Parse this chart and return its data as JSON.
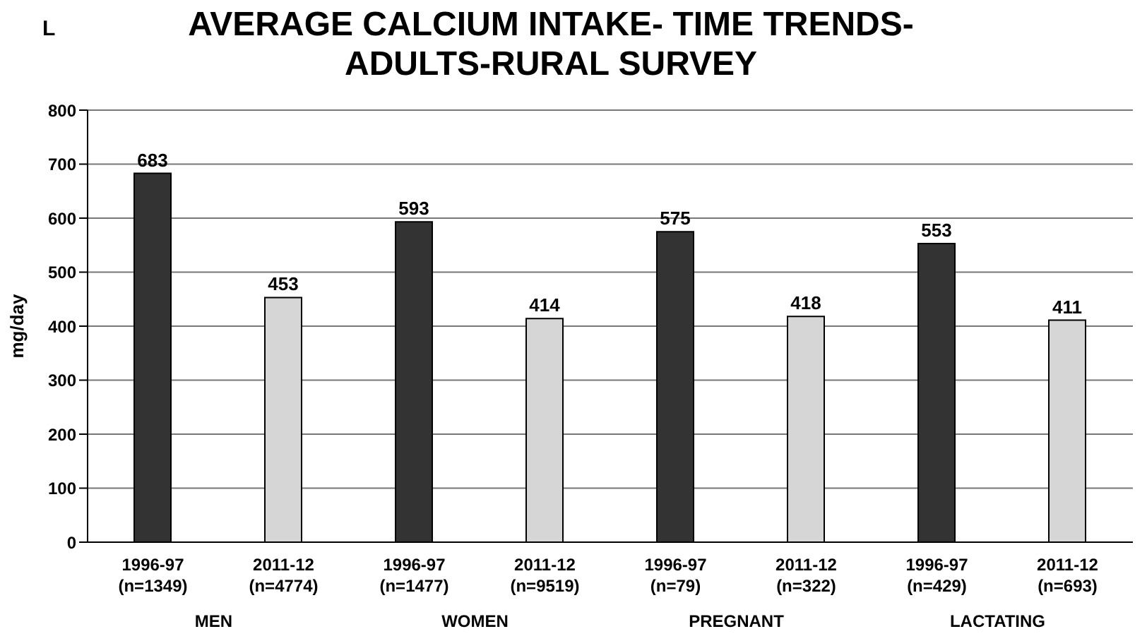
{
  "chart_data": {
    "type": "bar",
    "title": "AVERAGE CALCIUM INTAKE- TIME TRENDS- ADULTS-RURAL SURVEY",
    "ylabel": "mg/day",
    "categories": [
      "1996-97 (n=1349)",
      "2011-12 (n=4774)",
      "1996-97 (n=1477)",
      "2011-12 (n=9519)",
      "1996-97 (n=79)",
      "2011-12 (n=322)",
      "1996-97 (n=429)",
      "2011-12 (n=693)"
    ],
    "values": [
      683,
      453,
      593,
      414,
      575,
      418,
      553,
      411
    ],
    "colors": [
      "#333333",
      "#d6d6d6",
      "#333333",
      "#d6d6d6",
      "#333333",
      "#d6d6d6",
      "#333333",
      "#d6d6d6"
    ],
    "annotations": [
      "L",
      "MEN",
      "WOMEN",
      "PREGNANT",
      "LACTATING"
    ],
    "ylim": [
      0,
      800
    ],
    "yticks": [
      0,
      100,
      200,
      300,
      400,
      500,
      600,
      700,
      800
    ],
    "grid": "y",
    "data_labels": true,
    "legend": false
  }
}
